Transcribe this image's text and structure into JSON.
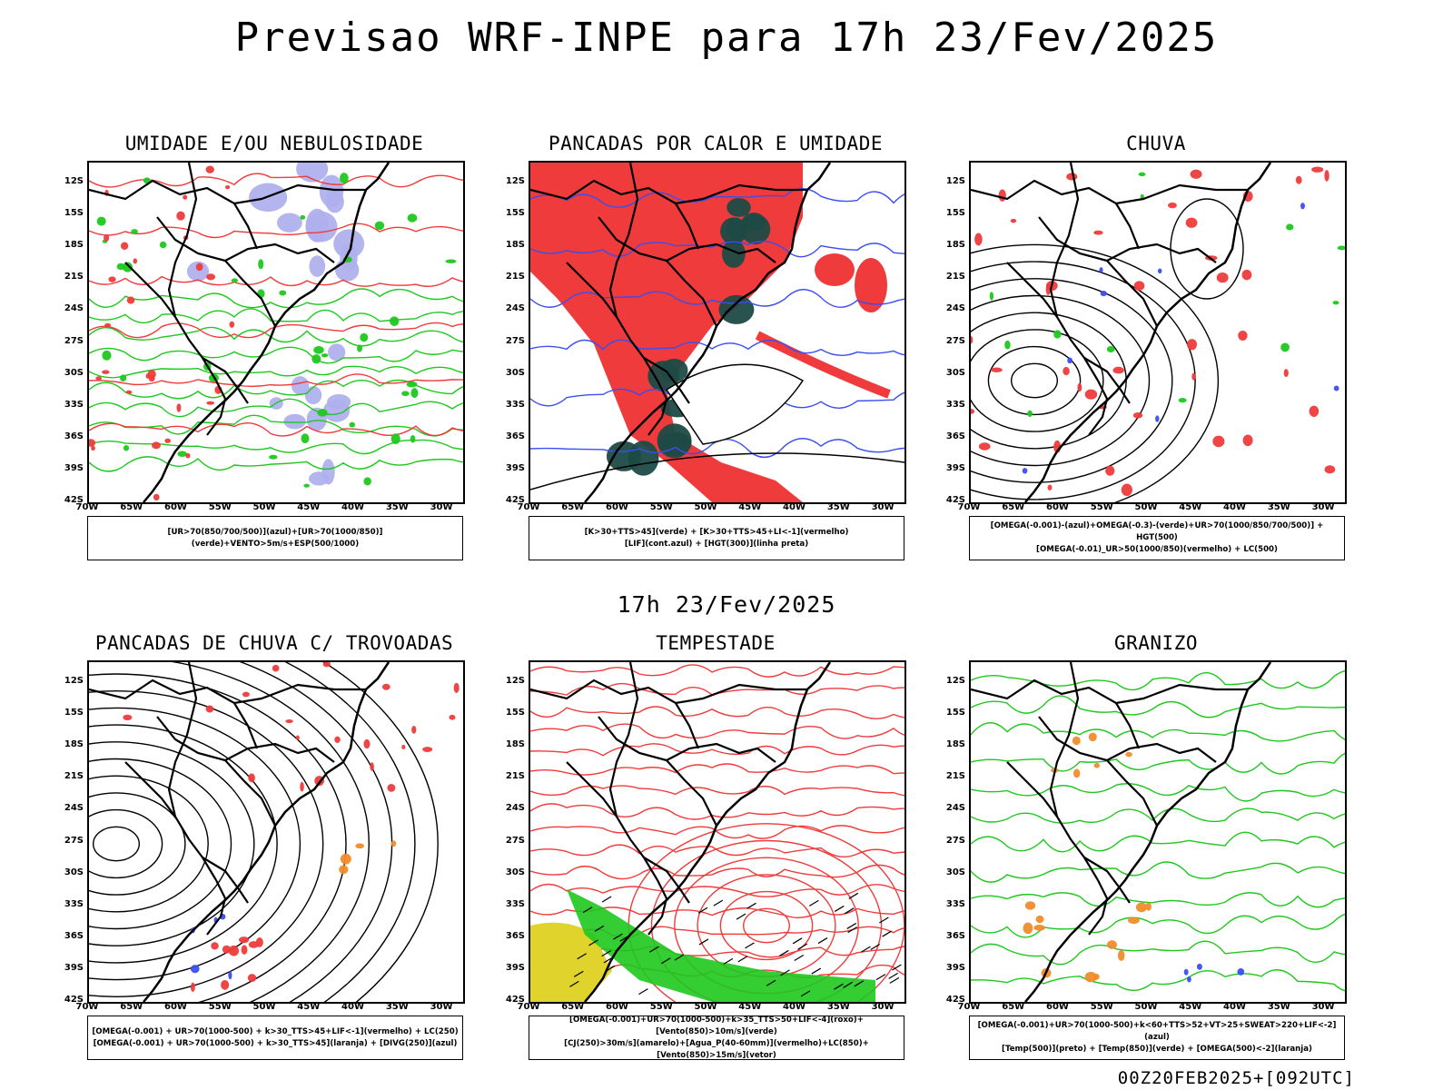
{
  "title": "Previsao WRF-INPE  para 17h 23/Fev/2025",
  "mid_time": "17h 23/Fev/2025",
  "footer": "00Z20FEB2025+[092UTC]",
  "lat_labels": [
    "12S",
    "15S",
    "18S",
    "21S",
    "24S",
    "27S",
    "30S",
    "33S",
    "36S",
    "39S",
    "42S"
  ],
  "lon_labels": [
    "70W",
    "65W",
    "60W",
    "55W",
    "50W",
    "45W",
    "40W",
    "35W",
    "30W"
  ],
  "panels": [
    {
      "title": "UMIDADE E/OU NEBULOSIDADE",
      "legend": [
        "[UR>70(850/700/500)](azul)+[UR>70(1000/850)](verde)+VENTO>5m/s+ESP(500/1000)"
      ]
    },
    {
      "title": "PANCADAS POR CALOR E UMIDADE",
      "legend": [
        "[K>30+TTS>45](verde) + [K>30+TTS>45+LI<-1](vermelho)",
        "[LIF](cont.azul) + [HGT(300)](linha preta)"
      ]
    },
    {
      "title": "CHUVA",
      "legend": [
        "[OMEGA(-0.001)-(azul)+OMEGA(-0.3)-(verde)+UR>70(1000/850/700/500)] + HGT(500)",
        "[OMEGA(-0.01)_UR>50(1000/850)(vermelho) + LC(500)"
      ]
    },
    {
      "title": "PANCADAS DE CHUVA C/ TROVOADAS",
      "legend": [
        "[OMEGA(-0.001) + UR>70(1000-500) + k>30_TTS>45+LIF<-1](vermelho) + LC(250)",
        "[OMEGA(-0.001) + UR>70(1000-500) + k>30_TTS>45](laranja) + [DIVG(250)](azul)"
      ]
    },
    {
      "title": "TEMPESTADE",
      "legend": [
        "[OMEGA(-0.001)+UR>70(1000-500)+k>35_TTS>50+LIF<-4](roxo)+[Vento(850)>10m/s](verde)",
        "[CJ(250)>30m/s](amarelo)+[Agua_P(40-60mm)](vermelho)+LC(850)+[Vento(850)>15m/s](vetor)"
      ]
    },
    {
      "title": "GRANIZO",
      "legend": [
        "[OMEGA(-0.001)+UR>70(1000-500)+k<60+TTS>52+VT>25+SWEAT>220+LIF<-2](azul)",
        "[Temp(500)](preto) + [Temp(850)](verde) + [OMEGA(500)<-2](laranja)"
      ]
    }
  ],
  "colors": {
    "red": "#ef3b3b",
    "green": "#1ec81e",
    "blue": "#3b4ef0",
    "lavender": "#b0b0ee",
    "darkteal": "#1e4a46",
    "yellow": "#e0d42c",
    "orange": "#f08c2c",
    "purple": "#9b2ad6"
  }
}
